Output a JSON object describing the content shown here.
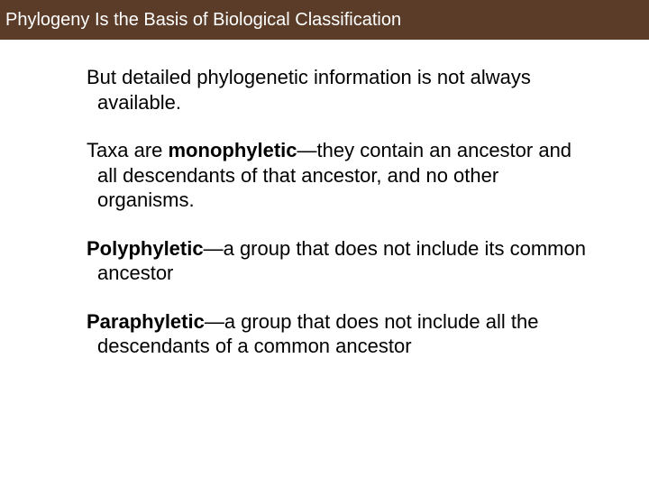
{
  "header": {
    "title": "Phylogeny Is the Basis of Biological Classification",
    "background_color": "#5a3c28",
    "text_color": "#ffffff",
    "font_size": 20
  },
  "body": {
    "font_size": 22,
    "text_color": "#000000",
    "paragraphs": [
      {
        "segments": [
          {
            "text": "But detailed phylogenetic information is not always available.",
            "bold": false
          }
        ]
      },
      {
        "segments": [
          {
            "text": "Taxa are ",
            "bold": false
          },
          {
            "text": "monophyletic",
            "bold": true
          },
          {
            "text": "—they contain an ancestor and all descendants of that ancestor, and no other organisms.",
            "bold": false
          }
        ]
      },
      {
        "segments": [
          {
            "text": "Polyphyletic",
            "bold": true
          },
          {
            "text": "—a group that does not include its common ancestor",
            "bold": false
          }
        ]
      },
      {
        "segments": [
          {
            "text": "Paraphyletic",
            "bold": true
          },
          {
            "text": "—a group that does not include all the descendants of a common ancestor",
            "bold": false
          }
        ]
      }
    ]
  }
}
